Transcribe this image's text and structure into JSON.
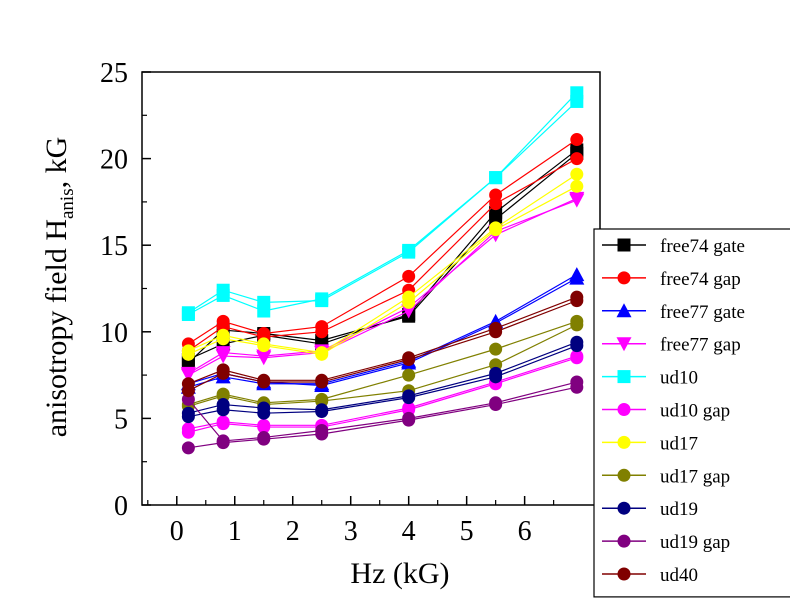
{
  "chart_data": {
    "type": "line",
    "title": "",
    "xlabel": "Hz (kG)",
    "ylabel": {
      "main": "anisotropy field H",
      "sub": "anis",
      "tail": ", kG"
    },
    "xlim": [
      -0.6,
      7.3
    ],
    "ylim": [
      0,
      25
    ],
    "xticks": [
      0,
      1,
      2,
      3,
      4,
      5,
      6
    ],
    "yticks": [
      0,
      5,
      10,
      15,
      20,
      25
    ],
    "grid": false,
    "legend_position": "right",
    "series": [
      {
        "name": "free74 gate",
        "color": "#000000",
        "marker": "square",
        "x": [
          0.2,
          0.8,
          1.5,
          2.5,
          4.0,
          5.5,
          6.9
        ],
        "y": [
          8.4,
          9.3,
          9.8,
          9.3,
          11.0,
          16.9,
          20.5
        ],
        "x2": [
          0.2,
          0.8,
          1.5,
          2.5,
          4.0,
          5.5,
          6.9
        ],
        "y2": [
          8.2,
          10.1,
          9.9,
          9.5,
          10.9,
          16.5,
          20.3
        ]
      },
      {
        "name": "free74 gap",
        "color": "#ff0000",
        "marker": "circle",
        "x": [
          0.2,
          0.8,
          1.5,
          2.5,
          4.0,
          5.5,
          6.9
        ],
        "y": [
          9.3,
          10.6,
          9.9,
          10.3,
          13.2,
          17.9,
          21.1
        ],
        "x2": [
          0.2,
          0.8,
          1.5,
          2.5,
          4.0,
          5.5,
          6.9
        ],
        "y2": [
          8.9,
          10.3,
          9.7,
          10.0,
          12.4,
          17.4,
          20.0
        ]
      },
      {
        "name": "free77 gate",
        "color": "#0000ff",
        "marker": "triangle-up",
        "x": [
          0.2,
          0.8,
          1.5,
          2.5,
          4.0,
          5.5,
          6.9
        ],
        "y": [
          6.8,
          7.4,
          7.0,
          7.0,
          8.3,
          10.6,
          13.3
        ],
        "x2": [
          0.2,
          0.8,
          1.5,
          2.5,
          4.0,
          5.5,
          6.9
        ],
        "y2": [
          7.0,
          7.6,
          7.1,
          6.9,
          8.2,
          10.5,
          13.1
        ]
      },
      {
        "name": "free77 gap",
        "color": "#ff00ff",
        "marker": "triangle-down",
        "x": [
          0.2,
          0.8,
          1.5,
          2.5,
          4.0,
          5.5,
          6.9
        ],
        "y": [
          7.6,
          8.8,
          8.6,
          8.9,
          11.4,
          15.6,
          17.7
        ],
        "x2": [
          0.2,
          0.8,
          1.5,
          2.5,
          4.0,
          5.5,
          6.9
        ],
        "y2": [
          7.5,
          8.6,
          8.5,
          8.8,
          11.2,
          15.8,
          17.6
        ]
      },
      {
        "name": "ud10",
        "color": "#00ffff",
        "marker": "square",
        "x": [
          0.2,
          0.8,
          1.5,
          2.5,
          4.0,
          5.5,
          6.9
        ],
        "y": [
          11.1,
          12.4,
          11.7,
          11.8,
          14.6,
          18.9,
          23.8
        ],
        "x2": [
          0.2,
          0.8,
          1.5,
          2.5,
          4.0,
          5.5,
          6.9
        ],
        "y2": [
          11.0,
          12.1,
          11.2,
          11.9,
          14.7,
          18.9,
          23.3
        ]
      },
      {
        "name": "ud10 gap",
        "color": "#ff00ff",
        "marker": "circle",
        "x": [
          0.2,
          0.8,
          1.5,
          2.5,
          4.0,
          5.5,
          6.9
        ],
        "y": [
          4.4,
          4.8,
          4.6,
          4.6,
          5.6,
          7.1,
          8.6
        ],
        "x2": [
          0.2,
          0.8,
          1.5,
          2.5,
          4.0,
          5.5,
          6.9
        ],
        "y2": [
          4.2,
          4.7,
          4.5,
          4.5,
          5.5,
          7.0,
          8.5
        ]
      },
      {
        "name": "ud17",
        "color": "#ffff00",
        "marker": "circle",
        "x": [
          0.2,
          0.8,
          1.5,
          2.5,
          4.0,
          5.5,
          6.9
        ],
        "y": [
          8.9,
          9.8,
          9.3,
          8.8,
          12.0,
          16.0,
          19.1
        ],
        "x2": [
          0.2,
          0.8,
          1.5,
          2.5,
          4.0,
          5.5,
          6.9
        ],
        "y2": [
          8.7,
          9.6,
          9.2,
          8.7,
          11.7,
          15.9,
          18.4
        ]
      },
      {
        "name": "ud17 gap",
        "color": "#808000",
        "marker": "circle",
        "x": [
          0.2,
          0.8,
          1.5,
          2.5,
          4.0,
          5.5,
          6.9
        ],
        "y": [
          5.8,
          6.4,
          5.9,
          6.1,
          7.5,
          9.0,
          10.6
        ],
        "x2": [
          0.2,
          0.8,
          1.5,
          2.5,
          4.0,
          5.5,
          6.9
        ],
        "y2": [
          5.7,
          6.3,
          5.8,
          6.0,
          6.6,
          8.1,
          10.4
        ]
      },
      {
        "name": "ud19",
        "color": "#000080",
        "marker": "circle",
        "x": [
          0.2,
          0.8,
          1.5,
          2.5,
          4.0,
          5.5,
          6.9
        ],
        "y": [
          5.3,
          5.8,
          5.6,
          5.5,
          6.3,
          7.6,
          9.4
        ],
        "x2": [
          0.2,
          0.8,
          1.5,
          2.5,
          4.0,
          5.5,
          6.9
        ],
        "y2": [
          5.1,
          5.5,
          5.3,
          5.4,
          6.2,
          7.4,
          9.2
        ]
      },
      {
        "name": "ud19 gap",
        "color": "#800080",
        "marker": "circle",
        "x": [
          0.2,
          0.8,
          1.5,
          2.5,
          4.0,
          5.5,
          6.9
        ],
        "y": [
          6.1,
          3.7,
          3.9,
          4.3,
          5.0,
          5.9,
          7.1
        ],
        "x2": [
          0.2,
          0.8,
          1.5,
          2.5,
          4.0,
          5.5,
          6.9
        ],
        "y2": [
          3.3,
          3.6,
          3.8,
          4.1,
          4.9,
          5.8,
          6.8
        ]
      },
      {
        "name": "ud40",
        "color": "#800000",
        "marker": "circle",
        "x": [
          0.2,
          0.8,
          1.5,
          2.5,
          4.0,
          5.5,
          6.9
        ],
        "y": [
          7.0,
          7.8,
          7.2,
          7.2,
          8.5,
          10.2,
          12.0
        ],
        "x2": [
          0.2,
          0.8,
          1.5,
          2.5,
          4.0,
          5.5,
          6.9
        ],
        "y2": [
          6.6,
          7.6,
          7.1,
          7.1,
          8.4,
          10.0,
          11.8
        ]
      }
    ]
  }
}
